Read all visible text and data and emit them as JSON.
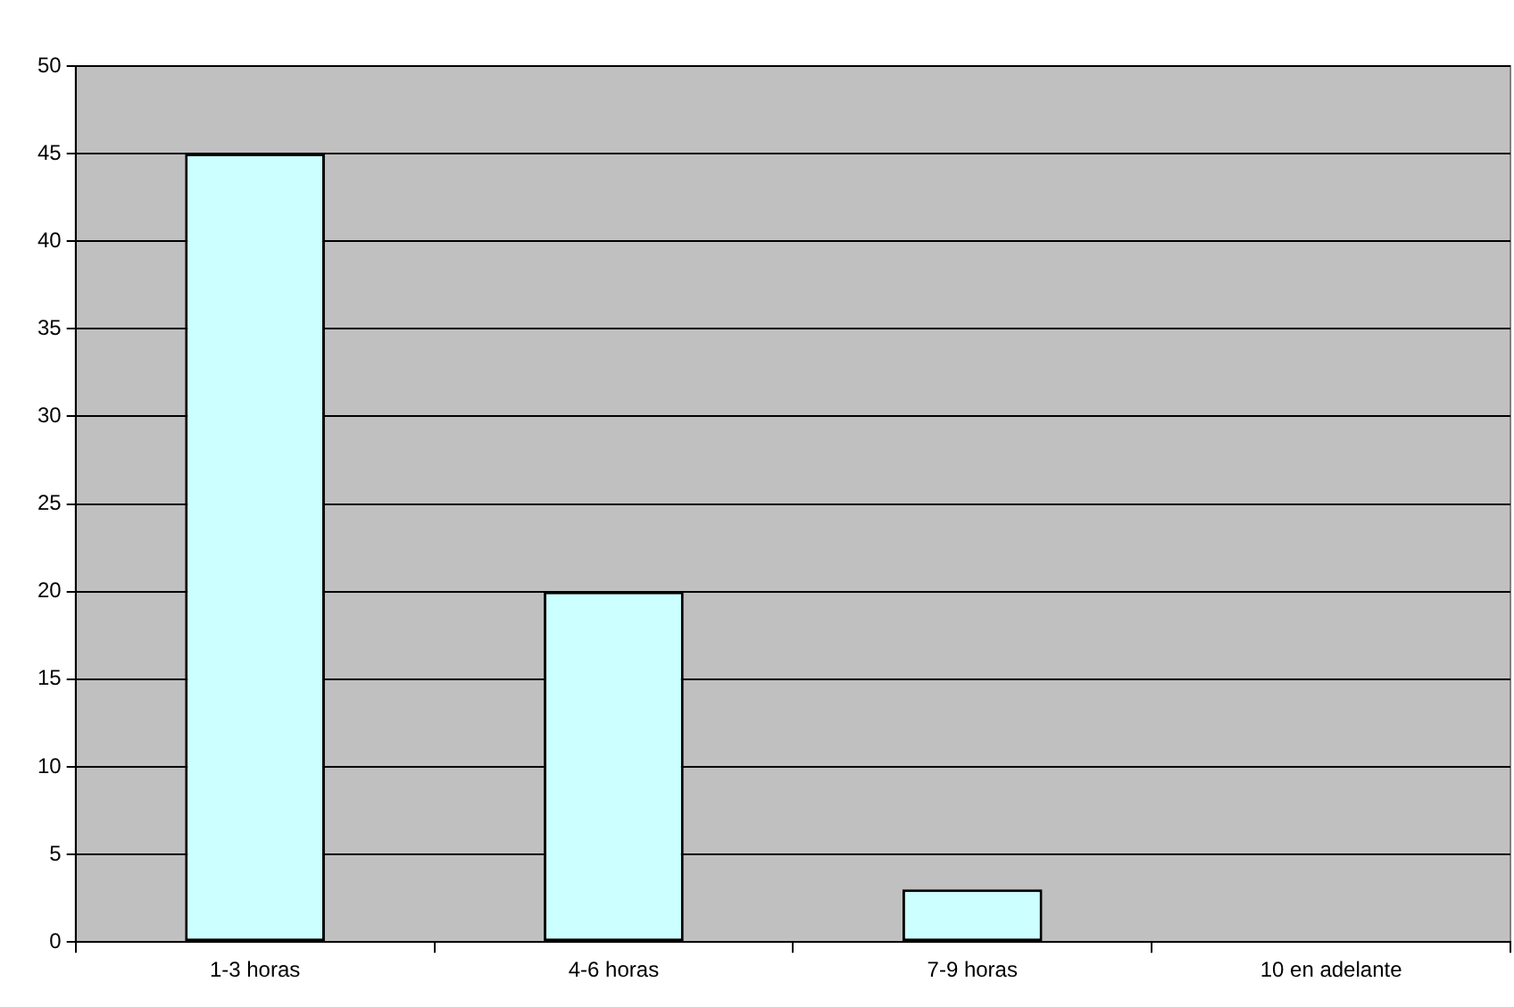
{
  "chart_data": {
    "type": "bar",
    "categories": [
      "1-3 horas",
      "4-6 horas",
      "7-9 horas",
      "10 en adelante"
    ],
    "values": [
      45,
      20,
      3,
      0
    ],
    "color": "#ccffff",
    "ylim": [
      0,
      50
    ],
    "yticks": [
      0,
      5,
      10,
      15,
      20,
      25,
      30,
      35,
      40,
      45,
      50
    ],
    "grid": "y",
    "legend": false
  }
}
